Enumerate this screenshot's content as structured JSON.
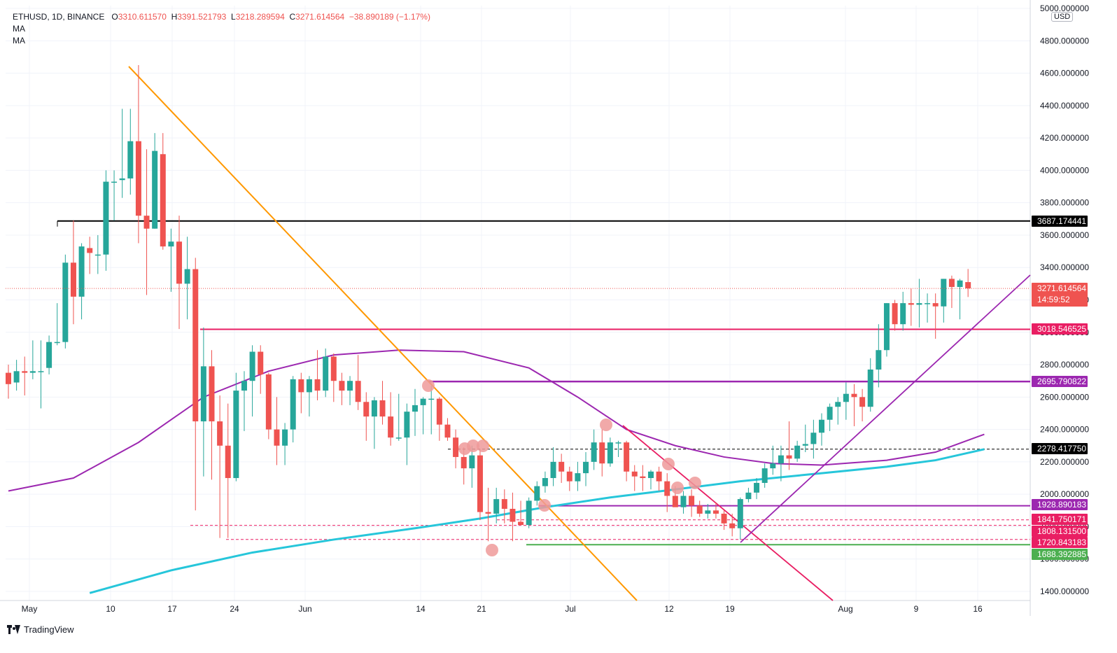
{
  "header": {
    "symbol": "ETHUSD, 1D, BINANCE",
    "open_label": "O",
    "open": "3310.611570",
    "high_label": "H",
    "high": "3391.521793",
    "low_label": "L",
    "low": "3218.289594",
    "close_label": "C",
    "close": "3271.614564",
    "change": "−38.890189 (−1.17%)",
    "indicators": [
      "MA",
      "MA"
    ]
  },
  "price_axis": {
    "currency": "USD",
    "ticks": [
      "5000.000000",
      "4800.000000",
      "4600.000000",
      "4400.000000",
      "4200.000000",
      "4000.000000",
      "3800.000000",
      "3600.000000",
      "3400.000000",
      "3200.000000",
      "3000.000000",
      "2800.000000",
      "2600.000000",
      "2400.000000",
      "2200.000000",
      "2000.000000",
      "1800.000000",
      "1600.000000",
      "1400.000000"
    ]
  },
  "time_axis": {
    "labels": [
      "May",
      "10",
      "17",
      "24",
      "Jun",
      "14",
      "21",
      "Jul",
      "12",
      "19",
      "Aug",
      "9",
      "16"
    ]
  },
  "price_labels": [
    {
      "text": "3687.174441",
      "color": "#000000"
    },
    {
      "text": "3271.614564",
      "sub": "14:59:52",
      "color": "#ef5350"
    },
    {
      "text": "3018.546525",
      "color": "#e91e63"
    },
    {
      "text": "2695.790822",
      "color": "#9c27b0"
    },
    {
      "text": "2278.417750",
      "color": "#000000"
    },
    {
      "text": "1928.890183",
      "color": "#9c27b0"
    },
    {
      "text": "1841.750171",
      "color": "#e91e63"
    },
    {
      "text": "1808.131500",
      "color": "#e91e63"
    },
    {
      "text": "1720.843183",
      "color": "#e91e63"
    },
    {
      "text": "1688.392885",
      "color": "#4caf50"
    }
  ],
  "brand": "TradingView",
  "colors": {
    "up": "#26a69a",
    "down": "#ef5350",
    "ma_long": "#26c6da",
    "ma_short": "#9c27b0",
    "trendline_down": "#ff9800",
    "trendline_wedge": "#e91e63",
    "trendline_up": "#9c27b0"
  },
  "chart_data": {
    "type": "candlestick",
    "symbol": "ETHUSD",
    "interval": "1D",
    "ylim": [
      1350,
      5000
    ],
    "candles": [
      {
        "o": 2750,
        "h": 2800,
        "l": 2590,
        "c": 2680
      },
      {
        "o": 2690,
        "h": 2830,
        "l": 2640,
        "c": 2760
      },
      {
        "o": 2760,
        "h": 2850,
        "l": 2610,
        "c": 2750
      },
      {
        "o": 2750,
        "h": 2950,
        "l": 2710,
        "c": 2760
      },
      {
        "o": 2760,
        "h": 2950,
        "l": 2530,
        "c": 2760
      },
      {
        "o": 2780,
        "h": 2980,
        "l": 2740,
        "c": 2940
      },
      {
        "o": 2940,
        "h": 3180,
        "l": 2920,
        "c": 2940
      },
      {
        "o": 2940,
        "h": 3480,
        "l": 2900,
        "c": 3430
      },
      {
        "o": 3430,
        "h": 3690,
        "l": 3050,
        "c": 3220
      },
      {
        "o": 3220,
        "h": 3550,
        "l": 3080,
        "c": 3530
      },
      {
        "o": 3520,
        "h": 3590,
        "l": 3360,
        "c": 3490
      },
      {
        "o": 3480,
        "h": 3600,
        "l": 3360,
        "c": 3480
      },
      {
        "o": 3480,
        "h": 4000,
        "l": 3380,
        "c": 3930
      },
      {
        "o": 3930,
        "h": 4000,
        "l": 3690,
        "c": 3930
      },
      {
        "o": 3940,
        "h": 4380,
        "l": 3830,
        "c": 3950
      },
      {
        "o": 3950,
        "h": 4380,
        "l": 3850,
        "c": 4180
      },
      {
        "o": 4180,
        "h": 4650,
        "l": 3550,
        "c": 3720
      },
      {
        "o": 3720,
        "h": 4130,
        "l": 3230,
        "c": 3640
      },
      {
        "o": 3640,
        "h": 4230,
        "l": 3640,
        "c": 4120
      },
      {
        "o": 4100,
        "h": 4230,
        "l": 3510,
        "c": 3530
      },
      {
        "o": 3530,
        "h": 3640,
        "l": 3250,
        "c": 3560
      },
      {
        "o": 3560,
        "h": 3720,
        "l": 3020,
        "c": 3300
      },
      {
        "o": 3300,
        "h": 3590,
        "l": 3080,
        "c": 3390
      },
      {
        "o": 3390,
        "h": 3460,
        "l": 1900,
        "c": 2450
      },
      {
        "o": 2450,
        "h": 3030,
        "l": 2110,
        "c": 2790
      },
      {
        "o": 2790,
        "h": 2890,
        "l": 2090,
        "c": 2450
      },
      {
        "o": 2450,
        "h": 2610,
        "l": 1730,
        "c": 2300
      },
      {
        "o": 2300,
        "h": 2560,
        "l": 1730,
        "c": 2100
      },
      {
        "o": 2100,
        "h": 2750,
        "l": 2080,
        "c": 2640
      },
      {
        "o": 2640,
        "h": 2760,
        "l": 2390,
        "c": 2700
      },
      {
        "o": 2700,
        "h": 2920,
        "l": 2480,
        "c": 2880
      },
      {
        "o": 2880,
        "h": 2920,
        "l": 2620,
        "c": 2740
      },
      {
        "o": 2740,
        "h": 2750,
        "l": 2340,
        "c": 2400
      },
      {
        "o": 2400,
        "h": 2600,
        "l": 2180,
        "c": 2300
      },
      {
        "o": 2300,
        "h": 2440,
        "l": 2180,
        "c": 2400
      },
      {
        "o": 2400,
        "h": 2730,
        "l": 2320,
        "c": 2710
      },
      {
        "o": 2710,
        "h": 2750,
        "l": 2500,
        "c": 2630
      },
      {
        "o": 2630,
        "h": 2730,
        "l": 2480,
        "c": 2710
      },
      {
        "o": 2710,
        "h": 2890,
        "l": 2580,
        "c": 2640
      },
      {
        "o": 2640,
        "h": 2900,
        "l": 2600,
        "c": 2850
      },
      {
        "o": 2850,
        "h": 2870,
        "l": 2570,
        "c": 2700
      },
      {
        "o": 2700,
        "h": 2750,
        "l": 2550,
        "c": 2640
      },
      {
        "o": 2640,
        "h": 2730,
        "l": 2550,
        "c": 2700
      },
      {
        "o": 2700,
        "h": 2860,
        "l": 2520,
        "c": 2570
      },
      {
        "o": 2570,
        "h": 2630,
        "l": 2330,
        "c": 2480
      },
      {
        "o": 2480,
        "h": 2600,
        "l": 2280,
        "c": 2580
      },
      {
        "o": 2580,
        "h": 2700,
        "l": 2430,
        "c": 2480
      },
      {
        "o": 2480,
        "h": 2630,
        "l": 2300,
        "c": 2350
      },
      {
        "o": 2350,
        "h": 2620,
        "l": 2330,
        "c": 2350
      },
      {
        "o": 2350,
        "h": 2560,
        "l": 2180,
        "c": 2510
      },
      {
        "o": 2510,
        "h": 2650,
        "l": 2360,
        "c": 2550
      },
      {
        "o": 2550,
        "h": 2600,
        "l": 2370,
        "c": 2590
      },
      {
        "o": 2590,
        "h": 2670,
        "l": 2370,
        "c": 2590
      },
      {
        "o": 2590,
        "h": 2600,
        "l": 2330,
        "c": 2430
      },
      {
        "o": 2430,
        "h": 2470,
        "l": 2330,
        "c": 2350
      },
      {
        "o": 2350,
        "h": 2400,
        "l": 2160,
        "c": 2230
      },
      {
        "o": 2230,
        "h": 2290,
        "l": 2060,
        "c": 2160
      },
      {
        "o": 2160,
        "h": 2300,
        "l": 2040,
        "c": 2240
      },
      {
        "o": 2240,
        "h": 2280,
        "l": 1840,
        "c": 1890
      },
      {
        "o": 1890,
        "h": 2040,
        "l": 1710,
        "c": 1880
      },
      {
        "o": 1880,
        "h": 2040,
        "l": 1820,
        "c": 1970
      },
      {
        "o": 1970,
        "h": 2030,
        "l": 1820,
        "c": 1910
      },
      {
        "o": 1910,
        "h": 2010,
        "l": 1710,
        "c": 1830
      },
      {
        "o": 1830,
        "h": 1960,
        "l": 1810,
        "c": 1810
      },
      {
        "o": 1810,
        "h": 1980,
        "l": 1790,
        "c": 1960
      },
      {
        "o": 1960,
        "h": 2080,
        "l": 1930,
        "c": 2050
      },
      {
        "o": 2050,
        "h": 2140,
        "l": 2010,
        "c": 2100
      },
      {
        "o": 2100,
        "h": 2290,
        "l": 2050,
        "c": 2200
      },
      {
        "o": 2200,
        "h": 2250,
        "l": 2070,
        "c": 2140
      },
      {
        "o": 2140,
        "h": 2170,
        "l": 2020,
        "c": 2080
      },
      {
        "o": 2080,
        "h": 2200,
        "l": 2020,
        "c": 2130
      },
      {
        "o": 2130,
        "h": 2260,
        "l": 2050,
        "c": 2200
      },
      {
        "o": 2200,
        "h": 2400,
        "l": 2150,
        "c": 2320
      },
      {
        "o": 2320,
        "h": 2400,
        "l": 2110,
        "c": 2190
      },
      {
        "o": 2190,
        "h": 2350,
        "l": 2170,
        "c": 2320
      },
      {
        "o": 2320,
        "h": 2330,
        "l": 2230,
        "c": 2320
      },
      {
        "o": 2320,
        "h": 2330,
        "l": 2080,
        "c": 2140
      },
      {
        "o": 2140,
        "h": 2180,
        "l": 2020,
        "c": 2110
      },
      {
        "o": 2110,
        "h": 2180,
        "l": 2020,
        "c": 2100
      },
      {
        "o": 2100,
        "h": 2150,
        "l": 2030,
        "c": 2140
      },
      {
        "o": 2140,
        "h": 2170,
        "l": 2020,
        "c": 2080
      },
      {
        "o": 2080,
        "h": 2130,
        "l": 1890,
        "c": 1990
      },
      {
        "o": 1990,
        "h": 2050,
        "l": 1930,
        "c": 1920
      },
      {
        "o": 1920,
        "h": 2020,
        "l": 1880,
        "c": 1990
      },
      {
        "o": 1990,
        "h": 2030,
        "l": 1860,
        "c": 1930
      },
      {
        "o": 1930,
        "h": 1960,
        "l": 1860,
        "c": 1880
      },
      {
        "o": 1880,
        "h": 1940,
        "l": 1850,
        "c": 1900
      },
      {
        "o": 1900,
        "h": 1950,
        "l": 1850,
        "c": 1880
      },
      {
        "o": 1880,
        "h": 1900,
        "l": 1780,
        "c": 1820
      },
      {
        "o": 1820,
        "h": 1880,
        "l": 1740,
        "c": 1790
      },
      {
        "o": 1790,
        "h": 1980,
        "l": 1720,
        "c": 1970
      },
      {
        "o": 1970,
        "h": 2040,
        "l": 1950,
        "c": 2010
      },
      {
        "o": 2010,
        "h": 2100,
        "l": 1970,
        "c": 2070
      },
      {
        "o": 2070,
        "h": 2190,
        "l": 2040,
        "c": 2160
      },
      {
        "o": 2160,
        "h": 2300,
        "l": 2120,
        "c": 2190
      },
      {
        "o": 2190,
        "h": 2300,
        "l": 2080,
        "c": 2240
      },
      {
        "o": 2240,
        "h": 2450,
        "l": 2150,
        "c": 2220
      },
      {
        "o": 2220,
        "h": 2330,
        "l": 2200,
        "c": 2300
      },
      {
        "o": 2300,
        "h": 2430,
        "l": 2260,
        "c": 2310
      },
      {
        "o": 2310,
        "h": 2460,
        "l": 2220,
        "c": 2380
      },
      {
        "o": 2380,
        "h": 2500,
        "l": 2300,
        "c": 2460
      },
      {
        "o": 2460,
        "h": 2560,
        "l": 2390,
        "c": 2540
      },
      {
        "o": 2540,
        "h": 2600,
        "l": 2430,
        "c": 2570
      },
      {
        "o": 2570,
        "h": 2690,
        "l": 2460,
        "c": 2620
      },
      {
        "o": 2620,
        "h": 2680,
        "l": 2420,
        "c": 2600
      },
      {
        "o": 2600,
        "h": 2650,
        "l": 2450,
        "c": 2540
      },
      {
        "o": 2540,
        "h": 2840,
        "l": 2510,
        "c": 2770
      },
      {
        "o": 2770,
        "h": 3050,
        "l": 2660,
        "c": 2890
      },
      {
        "o": 2890,
        "h": 3180,
        "l": 2850,
        "c": 3180
      },
      {
        "o": 3180,
        "h": 3200,
        "l": 3010,
        "c": 3050
      },
      {
        "o": 3050,
        "h": 3250,
        "l": 3010,
        "c": 3180
      },
      {
        "o": 3180,
        "h": 3270,
        "l": 3040,
        "c": 3170
      },
      {
        "o": 3170,
        "h": 3330,
        "l": 3030,
        "c": 3180
      },
      {
        "o": 3180,
        "h": 3240,
        "l": 3060,
        "c": 3180
      },
      {
        "o": 3180,
        "h": 3240,
        "l": 2960,
        "c": 3160
      },
      {
        "o": 3160,
        "h": 3330,
        "l": 3060,
        "c": 3330
      },
      {
        "o": 3330,
        "h": 3350,
        "l": 3150,
        "c": 3280
      },
      {
        "o": 3280,
        "h": 3330,
        "l": 3080,
        "c": 3320
      },
      {
        "o": 3310,
        "h": 3391,
        "l": 3218,
        "c": 3271
      }
    ],
    "moving_averages": [
      {
        "name": "MA",
        "color": "#9c27b0",
        "points": [
          [
            0,
            2020
          ],
          [
            8,
            2100
          ],
          [
            16,
            2320
          ],
          [
            24,
            2600
          ],
          [
            32,
            2760
          ],
          [
            40,
            2860
          ],
          [
            48,
            2890
          ],
          [
            56,
            2880
          ],
          [
            64,
            2780
          ],
          [
            70,
            2600
          ],
          [
            76,
            2400
          ],
          [
            82,
            2300
          ],
          [
            88,
            2230
          ],
          [
            94,
            2190
          ],
          [
            100,
            2180
          ],
          [
            108,
            2210
          ],
          [
            114,
            2260
          ],
          [
            120,
            2370
          ]
        ]
      },
      {
        "name": "MA",
        "color": "#26c6da",
        "points": [
          [
            10,
            1390
          ],
          [
            20,
            1530
          ],
          [
            30,
            1640
          ],
          [
            40,
            1720
          ],
          [
            50,
            1790
          ],
          [
            58,
            1850
          ],
          [
            66,
            1920
          ],
          [
            74,
            1980
          ],
          [
            82,
            2030
          ],
          [
            90,
            2080
          ],
          [
            100,
            2130
          ],
          [
            108,
            2170
          ],
          [
            114,
            2210
          ],
          [
            120,
            2278
          ]
        ]
      }
    ],
    "horizontal_levels": [
      3687.174441,
      3018.546525,
      2695.790822,
      2278.41775,
      1928.890183,
      1841.750171,
      1808.1315,
      1720.843183,
      1688.392885
    ]
  }
}
